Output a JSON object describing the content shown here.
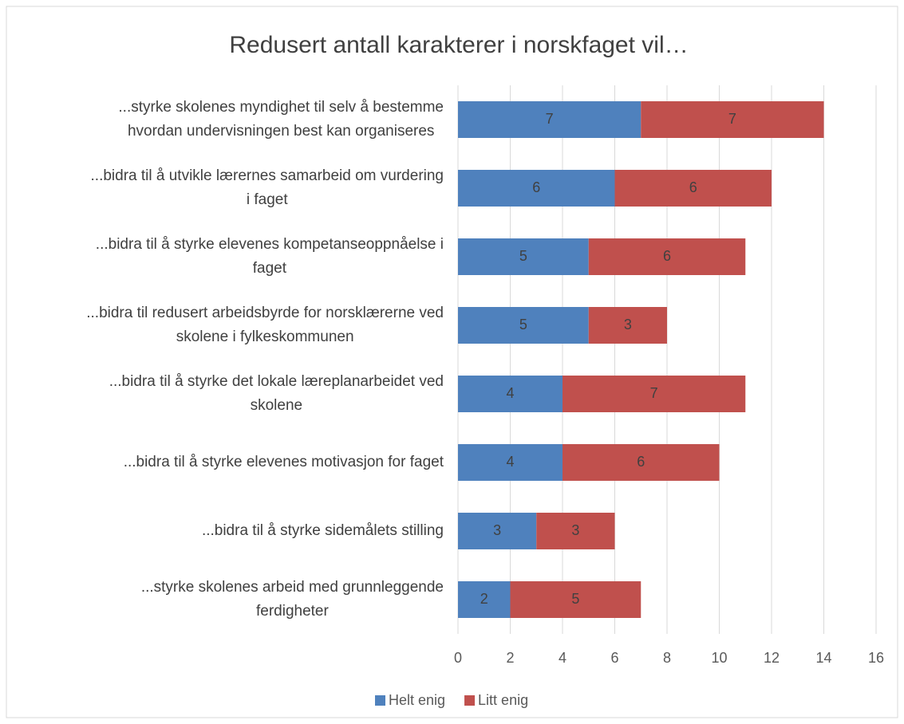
{
  "chart_data": {
    "type": "stacked-barh",
    "title": "Redusert antall karakterer i norskfaget vil…",
    "categories": [
      [
        "...styrke skolenes myndighet til selv å bestemme",
        "hvordan undervisningen best kan organiseres"
      ],
      [
        "...bidra til å utvikle lærernes samarbeid om vurdering",
        "i faget"
      ],
      [
        "...bidra til å styrke elevenes kompetanseoppnåelse i",
        "faget"
      ],
      [
        "...bidra til redusert arbeidsbyrde for norsklærerne ved",
        "skolene i fylkeskommunen"
      ],
      [
        "...bidra til å styrke det lokale læreplanarbeidet ved",
        "skolene"
      ],
      [
        "...bidra til å styrke elevenes motivasjon for faget"
      ],
      [
        "...bidra til å styrke sidemålets stilling"
      ],
      [
        "...styrke skolenes arbeid med grunnleggende",
        "ferdigheter"
      ]
    ],
    "series": [
      {
        "name": "Helt enig",
        "color": "#4f81bd",
        "values": [
          7,
          6,
          5,
          5,
          4,
          4,
          3,
          2
        ]
      },
      {
        "name": "Litt enig",
        "color": "#c0504d",
        "values": [
          7,
          6,
          6,
          3,
          7,
          6,
          3,
          5
        ]
      }
    ],
    "xlim": [
      0,
      16
    ],
    "xticks": [
      0,
      2,
      4,
      6,
      8,
      10,
      12,
      14,
      16
    ],
    "grid": true,
    "legend": "bottom"
  }
}
